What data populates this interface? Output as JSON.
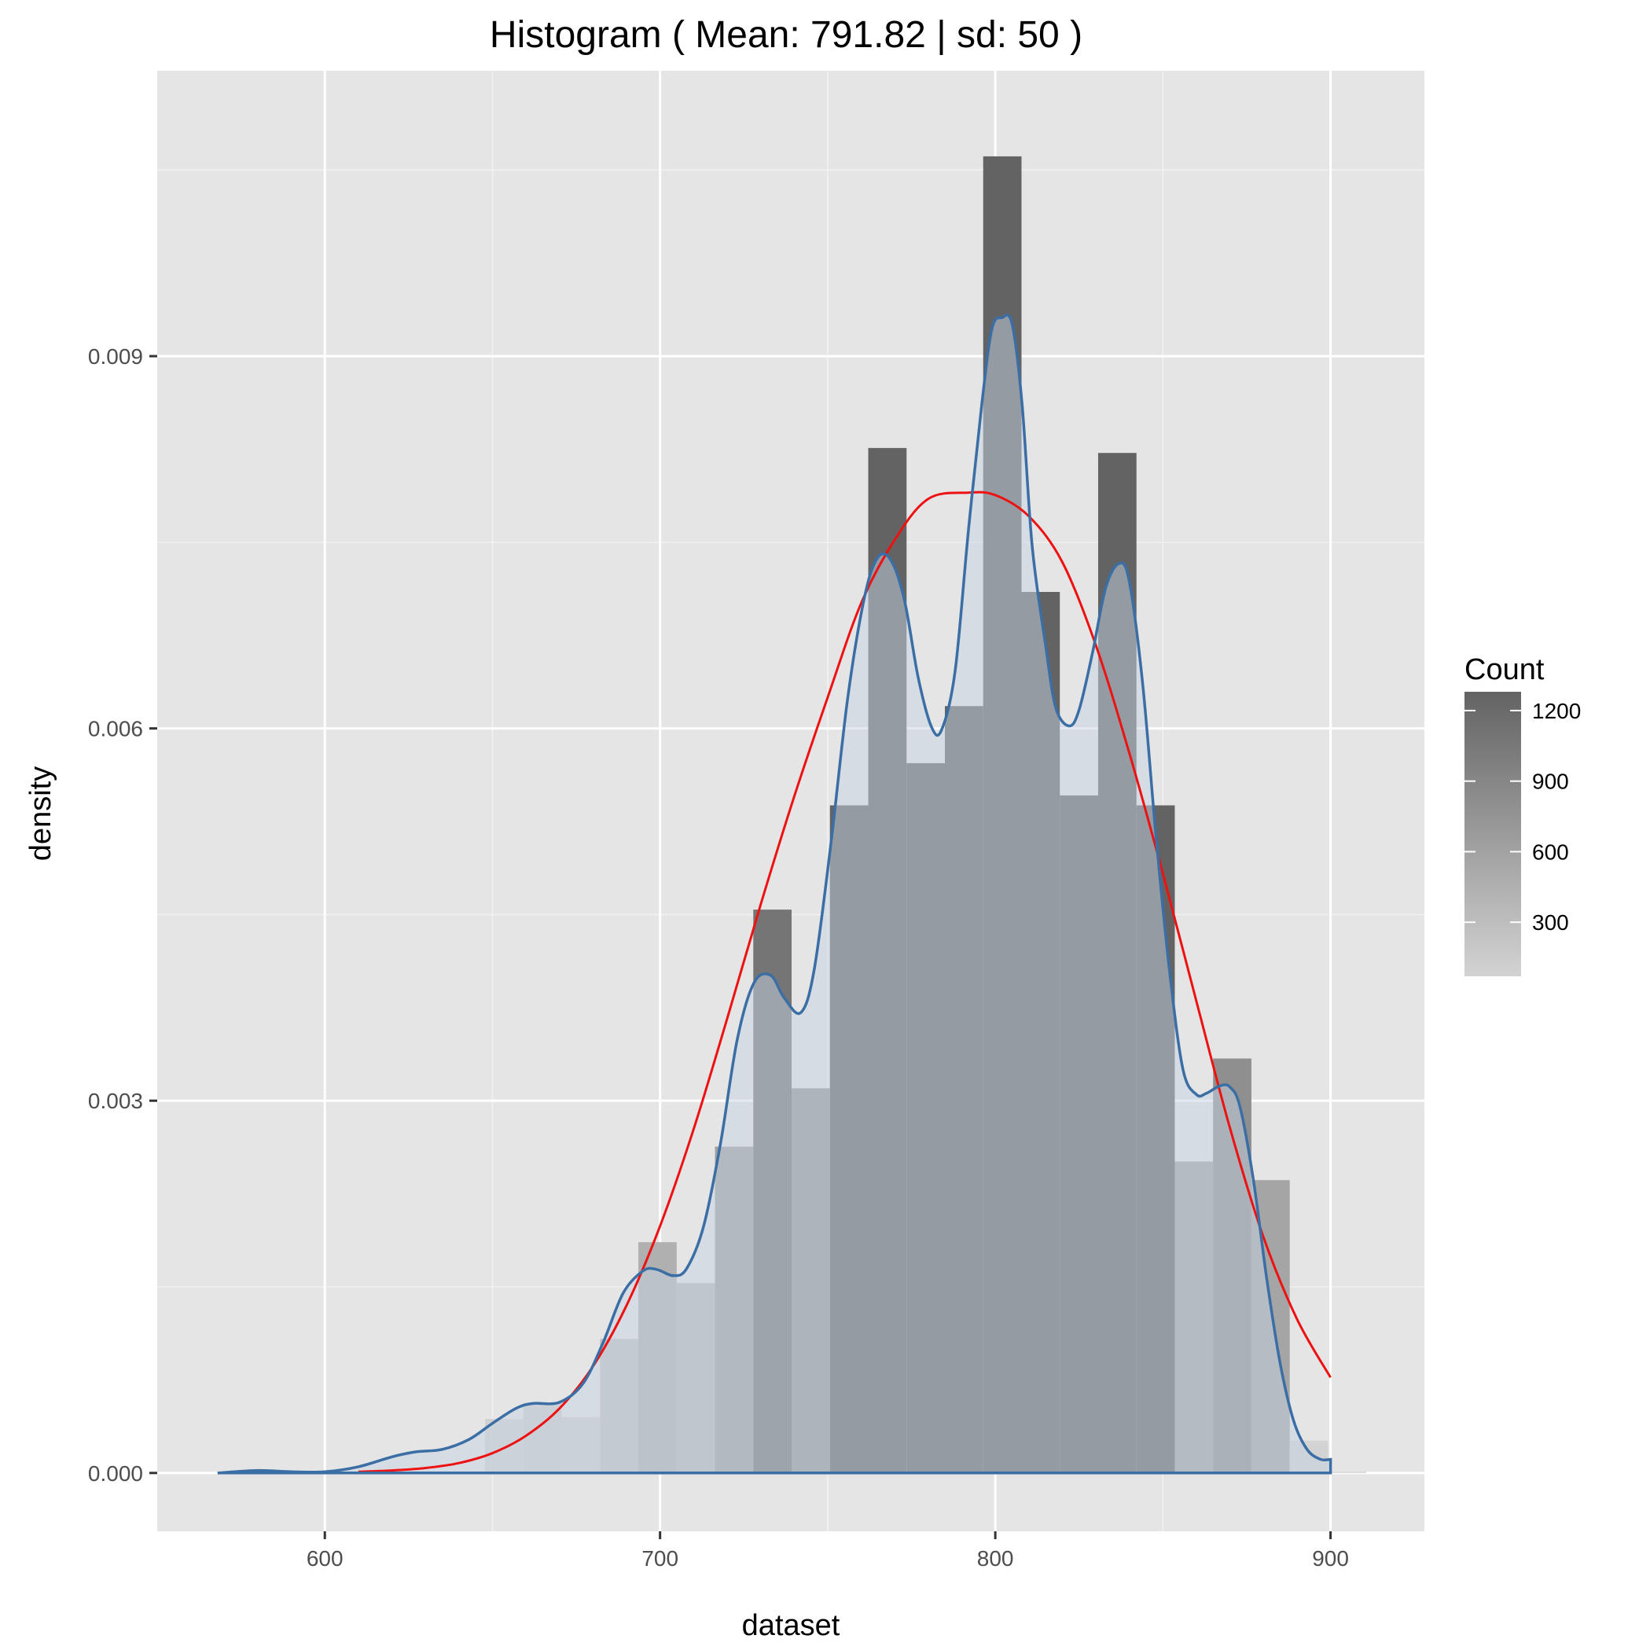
{
  "chart_data": {
    "type": "bar",
    "title": "Histogram ( Mean: 791.82 | sd: 50 )",
    "xlabel": "dataset",
    "ylabel": "density",
    "xlim": [
      550,
      928
    ],
    "ylim": [
      -0.00047,
      0.0113
    ],
    "x_ticks": [
      {
        "value": 600,
        "label": "600"
      },
      {
        "value": 700,
        "label": "700"
      },
      {
        "value": 800,
        "label": "800"
      },
      {
        "value": 900,
        "label": "900"
      }
    ],
    "y_ticks": [
      {
        "value": 0.0,
        "label": "0.000"
      },
      {
        "value": 0.003,
        "label": "0.003"
      },
      {
        "value": 0.006,
        "label": "0.006"
      },
      {
        "value": 0.009,
        "label": "0.009"
      }
    ],
    "grid": true,
    "legend": {
      "title": "Count",
      "position": "right",
      "type": "colorbar",
      "range": [
        70,
        1280
      ],
      "ticks": [
        {
          "value": 300,
          "label": "300"
        },
        {
          "value": 600,
          "label": "600"
        },
        {
          "value": 900,
          "label": "900"
        },
        {
          "value": 1200,
          "label": "1200"
        }
      ]
    },
    "histogram": {
      "bin_width": 11.43,
      "first_bin_left": 647.8,
      "density": [
        0.000435,
        0.000565,
        0.00045,
        0.00108,
        0.00186,
        0.00153,
        0.00263,
        0.00454,
        0.0031,
        0.00538,
        0.00826,
        0.00572,
        0.00618,
        0.01061,
        0.0071,
        0.00546,
        0.00822,
        0.00538,
        0.00251,
        0.00334,
        0.00236,
        0.00026,
        1e-05
      ],
      "count": [
        105,
        135,
        110,
        260,
        445,
        365,
        630,
        1085,
        740,
        1285,
        1975,
        1365,
        1475,
        2535,
        1700,
        1305,
        1965,
        1285,
        600,
        800,
        565,
        62,
        3
      ]
    },
    "series": [
      {
        "name": "density",
        "color": "#3a6ea5",
        "fill": "#c8d4e2",
        "x": [
          568,
          580,
          590,
          600,
          610,
          620,
          627,
          635,
          643,
          650,
          657,
          662,
          670,
          677,
          683,
          689,
          695,
          699,
          704,
          708,
          713,
          718,
          723,
          728,
          733,
          737,
          742,
          746,
          751,
          756,
          761,
          765,
          769,
          773,
          777,
          781,
          784,
          788,
          792,
          796,
          799,
          802,
          805,
          808,
          811,
          815,
          818,
          822,
          825,
          829,
          833,
          837,
          840,
          844,
          848,
          852,
          856,
          860,
          863,
          867,
          870,
          873,
          877,
          881,
          885,
          889,
          893,
          897,
          900
        ],
        "values": [
          0.0,
          2e-05,
          1e-05,
          1e-05,
          5e-05,
          0.00013,
          0.00017,
          0.00019,
          0.00027,
          0.0004,
          0.00052,
          0.00056,
          0.00057,
          0.00072,
          0.00105,
          0.00145,
          0.00163,
          0.00164,
          0.00159,
          0.00165,
          0.00199,
          0.00265,
          0.00349,
          0.00395,
          0.00401,
          0.00383,
          0.00371,
          0.00406,
          0.00508,
          0.00625,
          0.00706,
          0.00738,
          0.00735,
          0.00702,
          0.00641,
          0.00601,
          0.00599,
          0.00646,
          0.0076,
          0.00862,
          0.00922,
          0.00931,
          0.00926,
          0.00861,
          0.00747,
          0.00667,
          0.00617,
          0.00602,
          0.00615,
          0.00661,
          0.00714,
          0.00733,
          0.00718,
          0.00635,
          0.00511,
          0.00404,
          0.00325,
          0.00305,
          0.00306,
          0.00312,
          0.00311,
          0.00295,
          0.00236,
          0.00156,
          0.00088,
          0.00042,
          0.00019,
          0.00011,
          0.00011
        ]
      },
      {
        "name": "normal",
        "color": "#ee1111",
        "x": [
          610,
          620,
          630,
          640,
          650,
          660,
          670,
          680,
          690,
          700,
          710,
          720,
          730,
          740,
          750,
          760,
          770,
          780,
          791.82,
          800,
          810,
          820,
          830,
          840,
          850,
          860,
          870,
          880,
          890,
          900
        ],
        "values": [
          1e-05,
          2e-05,
          4e-05,
          8e-05,
          0.00016,
          0.0003,
          0.00052,
          0.00086,
          0.00135,
          0.00199,
          0.00277,
          0.00366,
          0.00458,
          0.00545,
          0.00625,
          0.00701,
          0.00752,
          0.00785,
          0.0079,
          0.00788,
          0.00771,
          0.00734,
          0.00667,
          0.0058,
          0.00483,
          0.0038,
          0.00278,
          0.0019,
          0.00124,
          0.00077
        ]
      }
    ]
  }
}
